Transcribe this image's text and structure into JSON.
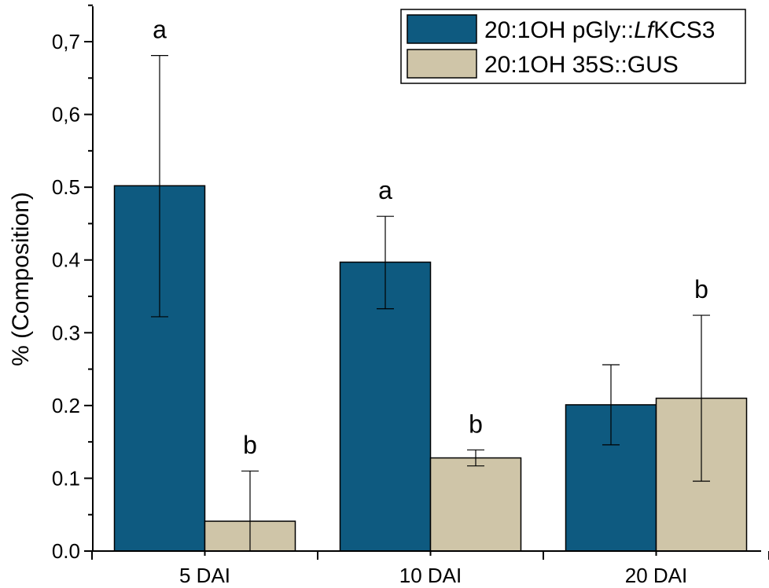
{
  "chart_data": {
    "type": "bar",
    "title": "",
    "xlabel": "",
    "ylabel": "% (Composition)",
    "ylim": [
      0.0,
      0.75
    ],
    "yticks": [
      {
        "value": 0.0,
        "label": "0.0"
      },
      {
        "value": 0.1,
        "label": "0.1"
      },
      {
        "value": 0.2,
        "label": "0.2"
      },
      {
        "value": 0.3,
        "label": "0.3"
      },
      {
        "value": 0.4,
        "label": "0.4"
      },
      {
        "value": 0.5,
        "label": "0.5"
      },
      {
        "value": 0.6,
        "label": "0,6"
      },
      {
        "value": 0.7,
        "label": "0,7"
      }
    ],
    "categories": [
      "5 DAI",
      "10 DAI",
      "20 DAI"
    ],
    "series": [
      {
        "name": "20:1OH pGly::LfKCS3",
        "name_parts": {
          "prefix": "20:1OH pGly::",
          "italic": "Lf",
          "suffix": "KCS3"
        },
        "color": "#0e5a80",
        "values": [
          0.502,
          0.397,
          0.201
        ],
        "error_low": [
          0.322,
          0.333,
          0.146
        ],
        "error_high": [
          0.681,
          0.46,
          0.256
        ],
        "significance": [
          "a",
          "a",
          ""
        ]
      },
      {
        "name": "20:1OH 35S::GUS",
        "color": "#cfc5a8",
        "values": [
          0.041,
          0.128,
          0.21
        ],
        "error_low": [
          0.0,
          0.117,
          0.096
        ],
        "error_high": [
          0.11,
          0.139,
          0.324
        ],
        "significance": [
          "b",
          "b",
          "b"
        ]
      }
    ],
    "grid": false,
    "legend_position": "top-right"
  }
}
